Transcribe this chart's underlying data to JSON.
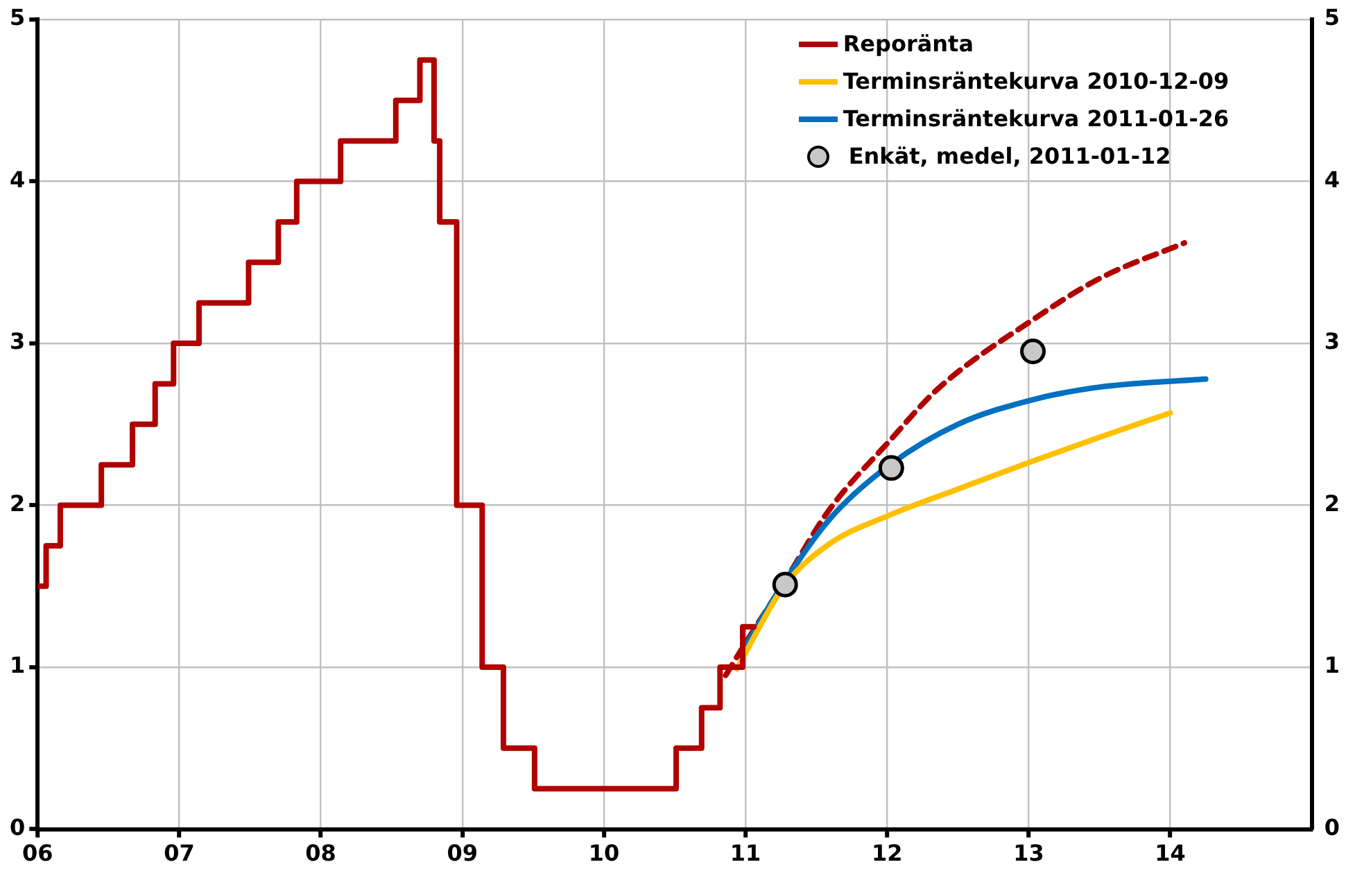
{
  "chart_data": {
    "type": "line",
    "xlim": [
      2006,
      2015
    ],
    "xticks": [
      {
        "value": 2006,
        "label": "06"
      },
      {
        "value": 2007,
        "label": "07"
      },
      {
        "value": 2008,
        "label": "08"
      },
      {
        "value": 2009,
        "label": "09"
      },
      {
        "value": 2010,
        "label": "10"
      },
      {
        "value": 2011,
        "label": "11"
      },
      {
        "value": 2012,
        "label": "12"
      },
      {
        "value": 2013,
        "label": "13"
      },
      {
        "value": 2014,
        "label": "14"
      }
    ],
    "ylim": [
      0,
      5
    ],
    "yticks": [
      0,
      1,
      2,
      3,
      4,
      5
    ],
    "y2lim": [
      0,
      5
    ],
    "y2ticks": [
      0,
      1,
      2,
      3,
      4,
      5
    ],
    "grid": true,
    "legend": "top right",
    "series": [
      {
        "name": "Reporänta",
        "type": "step",
        "color": "#b00000",
        "x": [
          2006.0,
          2006.06,
          2006.16,
          2006.45,
          2006.67,
          2006.83,
          2006.96,
          2007.14,
          2007.49,
          2007.7,
          2007.83,
          2008.14,
          2008.53,
          2008.7,
          2008.8,
          2008.84,
          2008.96,
          2009.14,
          2009.29,
          2009.51,
          2010.51,
          2010.69,
          2010.82,
          2010.98,
          2011.06
        ],
        "values": [
          1.5,
          1.75,
          2.0,
          2.25,
          2.5,
          2.75,
          3.0,
          3.25,
          3.5,
          3.75,
          4.0,
          4.25,
          4.5,
          4.75,
          4.25,
          3.75,
          2.0,
          1.0,
          0.5,
          0.25,
          0.5,
          0.75,
          1.0,
          1.25,
          1.25
        ]
      },
      {
        "name": "Terminsräntekurva 2010-12-09",
        "type": "line",
        "color": "#ffc000",
        "x": [
          2010.94,
          2011.1,
          2011.27,
          2011.59,
          2012.02,
          2012.5,
          2013.02,
          2013.5,
          2014.0
        ],
        "values": [
          0.99,
          1.25,
          1.5,
          1.76,
          1.94,
          2.1,
          2.27,
          2.42,
          2.57
        ]
      },
      {
        "name": "Terminsräntekurva 2011-01-26",
        "type": "line",
        "color": "#0070c0",
        "x": [
          2010.98,
          2011.1,
          2011.27,
          2011.6,
          2012.02,
          2012.5,
          2013.02,
          2013.5,
          2014.25
        ],
        "values": [
          1.1,
          1.28,
          1.52,
          1.92,
          2.25,
          2.5,
          2.65,
          2.73,
          2.78
        ]
      },
      {
        "type": "line",
        "line_style": "dashed",
        "color": "#b00000",
        "x": [
          2010.86,
          2011.0,
          2011.27,
          2011.59,
          2012.02,
          2012.36,
          2013.02,
          2013.5,
          2014.1
        ],
        "values": [
          0.95,
          1.15,
          1.52,
          1.97,
          2.4,
          2.72,
          3.14,
          3.4,
          3.62
        ]
      },
      {
        "name": "Enkät, medel, 2011-01-12",
        "type": "scatter",
        "marker": "circle",
        "color": "#c8c8c8",
        "x": [
          2011.28,
          2012.03,
          2013.03
        ],
        "values": [
          1.51,
          2.23,
          2.95
        ]
      }
    ]
  }
}
